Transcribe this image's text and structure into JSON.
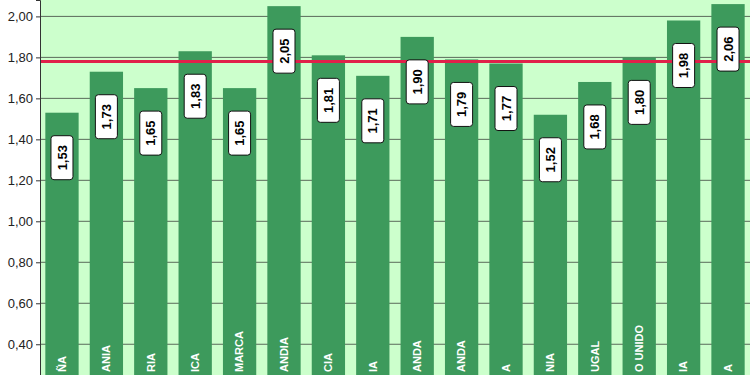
{
  "chart_data": {
    "type": "bar",
    "categories": [
      "ÑA",
      "ANIA",
      "RIA",
      "ICA",
      "MARCA",
      "ANDIA",
      "CIA",
      "IA",
      "ANDA",
      "ANDA",
      "A",
      "NIA",
      "UGAL",
      "O UNIDO",
      "IA",
      "A"
    ],
    "values": [
      1.53,
      1.73,
      1.65,
      1.83,
      1.65,
      2.05,
      1.81,
      1.71,
      1.9,
      1.79,
      1.77,
      1.52,
      1.68,
      1.8,
      1.98,
      2.06
    ],
    "value_labels": [
      "1,53",
      "1,73",
      "1,65",
      "1,83",
      "1,65",
      "2,05",
      "1,81",
      "1,71",
      "1,90",
      "1,79",
      "1,77",
      "1,52",
      "1,68",
      "1,80",
      "1,98",
      "2,06"
    ],
    "color": "#3d9a5c",
    "data_labels": true,
    "reference_line": 1.78,
    "ylim": [
      0.25,
      2.08
    ],
    "yticks": [
      {
        "value": 0.4,
        "label": "0,40"
      },
      {
        "value": 0.6,
        "label": "0,60"
      },
      {
        "value": 0.8,
        "label": "0,80"
      },
      {
        "value": 1.0,
        "label": "1,00"
      },
      {
        "value": 1.2,
        "label": "1,20"
      },
      {
        "value": 1.4,
        "label": "1,40"
      },
      {
        "value": 1.6,
        "label": "1,60"
      },
      {
        "value": 1.8,
        "label": "1,80"
      },
      {
        "value": 2.0,
        "label": "2,00"
      }
    ],
    "grid": true
  }
}
